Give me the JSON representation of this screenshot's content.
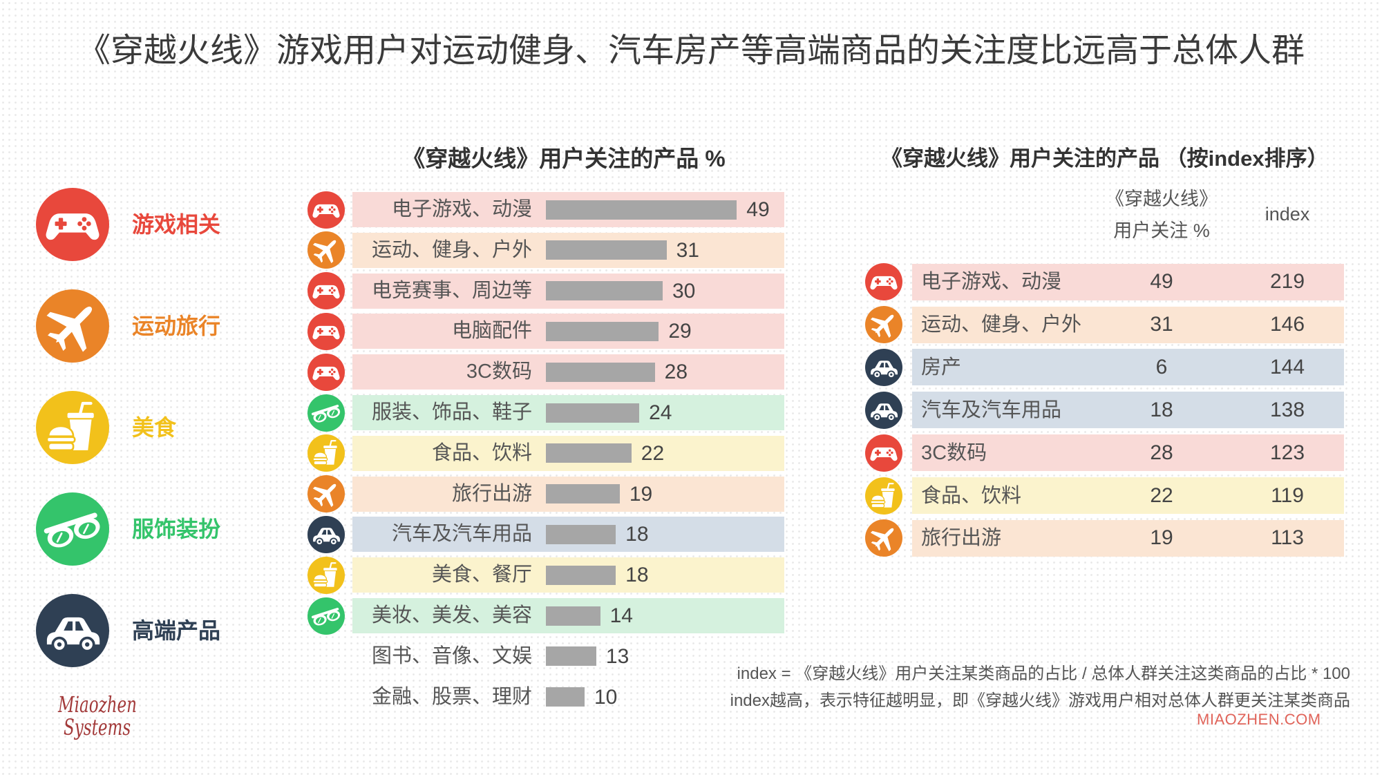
{
  "title": "《穿越火线》游戏用户对运动健身、汽车房产等高端商品的关注度比远高于总体人群",
  "legend": [
    {
      "label": "游戏相关",
      "icon": "gamepad-icon",
      "color": "#e8483c"
    },
    {
      "label": "运动旅行",
      "icon": "airplane-icon",
      "color": "#ea8428"
    },
    {
      "label": "美食",
      "icon": "food-icon",
      "color": "#f2c11b"
    },
    {
      "label": "服饰装扮",
      "icon": "glasses-icon",
      "color": "#34c46b"
    },
    {
      "label": "高端产品",
      "icon": "car-icon",
      "color": "#2f4054"
    }
  ],
  "chart_data": [
    {
      "type": "bar",
      "orientation": "horizontal",
      "title": "《穿越火线》用户关注的产品 %",
      "categories": [
        "电子游戏、动漫",
        "运动、健身、户外",
        "电竞赛事、周边等",
        "电脑配件",
        "3C数码",
        "服装、饰品、鞋子",
        "食品、饮料",
        "旅行出游",
        "汽车及汽车用品",
        "美食、餐厅",
        "美妆、美发、美容",
        "图书、音像、文娱",
        "金融、股票、理财"
      ],
      "values": [
        49,
        31,
        30,
        29,
        28,
        24,
        22,
        19,
        18,
        18,
        14,
        13,
        10
      ],
      "icons": [
        "gamepad-icon",
        "airplane-icon",
        "gamepad-icon",
        "gamepad-icon",
        "gamepad-icon",
        "glasses-icon",
        "food-icon",
        "airplane-icon",
        "car-icon",
        "food-icon",
        "glasses-icon",
        null,
        null
      ],
      "band_colors": [
        "#f9dad7",
        "#fbe5d3",
        "#f9dad7",
        "#f9dad7",
        "#f9dad7",
        "#d5f1de",
        "#fbf3cd",
        "#fbe5d3",
        "#d4dde7",
        "#fbf3cd",
        "#d5f1de",
        null,
        null
      ],
      "bar_color": "#a6a6a6"
    },
    {
      "type": "table",
      "title": "《穿越火线》用户关注的产品 （按index排序）",
      "columns": [
        {
          "lines": [
            "《穿越火线》",
            "用户关注 %"
          ]
        },
        {
          "lines": [
            "index"
          ]
        }
      ],
      "rows": [
        {
          "label": "电子游戏、动漫",
          "pct": 49,
          "index": 219,
          "icon": "gamepad-icon",
          "band": "#f9dad7"
        },
        {
          "label": "运动、健身、户外",
          "pct": 31,
          "index": 146,
          "icon": "airplane-icon",
          "band": "#fbe5d3"
        },
        {
          "label": "房产",
          "pct": 6,
          "index": 144,
          "icon": "car-icon",
          "band": "#d4dde7"
        },
        {
          "label": "汽车及汽车用品",
          "pct": 18,
          "index": 138,
          "icon": "car-icon",
          "band": "#d4dde7"
        },
        {
          "label": "3C数码",
          "pct": 28,
          "index": 123,
          "icon": "gamepad-icon",
          "band": "#f9dad7"
        },
        {
          "label": "食品、饮料",
          "pct": 22,
          "index": 119,
          "icon": "food-icon",
          "band": "#fbf3cd"
        },
        {
          "label": "旅行出游",
          "pct": 19,
          "index": 113,
          "icon": "airplane-icon",
          "band": "#fbe5d3"
        }
      ]
    }
  ],
  "footnotes": [
    "index = 《穿越火线》用户关注某类商品的占比 / 总体人群关注这类商品的占比 * 100",
    "index越高，表示特征越明显，即《穿越火线》游戏用户相对总体人群更关注某类商品"
  ],
  "brand": {
    "logo_line1": "Miaozhen",
    "logo_line2": "Systems",
    "site": "MIAOZHEN.COM"
  }
}
